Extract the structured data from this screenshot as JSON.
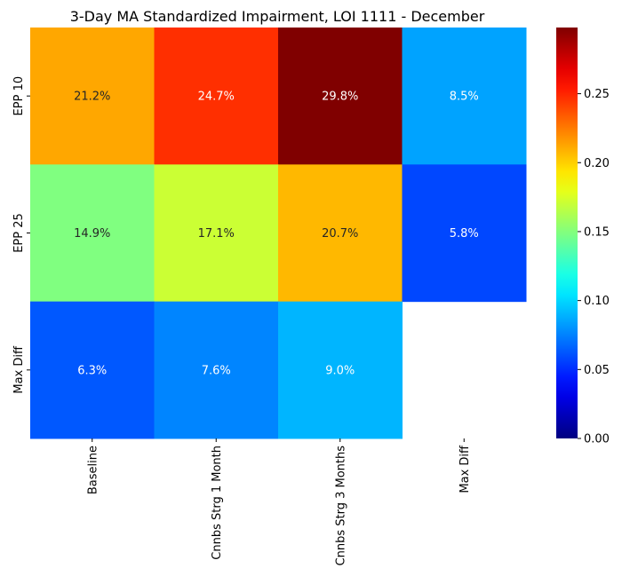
{
  "chart_data": {
    "type": "heatmap",
    "title": "3-Day MA Standardized Impairment, LOI 1111 - December",
    "xlabel": "",
    "ylabel": "",
    "columns": [
      "Baseline",
      "Cnnbs Strg 1 Month",
      "Cnnbs Strg 3 Months",
      "Max Diff"
    ],
    "rows": [
      "EPP 10",
      "EPP 25",
      "Max Diff"
    ],
    "values": [
      [
        0.212,
        0.247,
        0.298,
        0.085
      ],
      [
        0.149,
        0.171,
        0.207,
        0.058
      ],
      [
        0.063,
        0.076,
        0.09,
        null
      ]
    ],
    "labels": [
      [
        "21.2%",
        "24.7%",
        "29.8%",
        "8.5%"
      ],
      [
        "14.9%",
        "17.1%",
        "20.7%",
        "5.8%"
      ],
      [
        "6.3%",
        "7.6%",
        "9.0%",
        ""
      ]
    ],
    "colormap": "jet",
    "vmin": 0.0,
    "vmax": 0.298,
    "colorbar_ticks": [
      0.0,
      0.05,
      0.1,
      0.15,
      0.2,
      0.25
    ],
    "colorbar_tick_labels": [
      "0.00",
      "0.05",
      "0.10",
      "0.15",
      "0.20",
      "0.25"
    ],
    "legend": "colorbar-right",
    "grid": false
  }
}
